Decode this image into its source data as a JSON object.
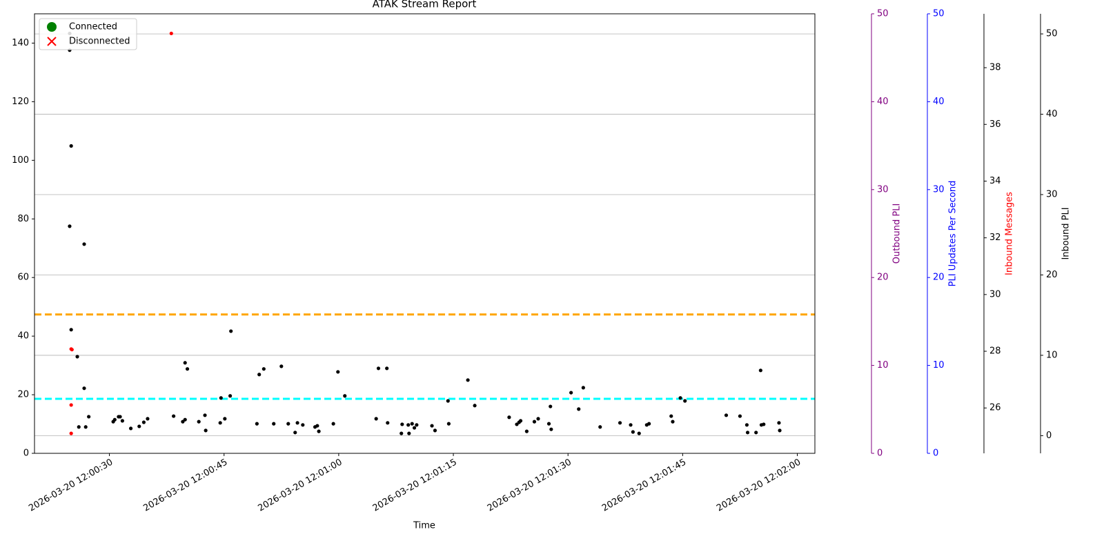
{
  "chart_data": {
    "type": "scatter",
    "title": "ATAK Stream Report",
    "x_label": "Time",
    "xlim": [
      "2026-03-20 12:00:20.2",
      "2026-03-20 12:02:02.3"
    ],
    "xticks": [
      "2026-03-20 12:00:30",
      "2026-03-20 12:00:45",
      "2026-03-20 12:01:00",
      "2026-03-20 12:01:15",
      "2026-03-20 12:01:30",
      "2026-03-20 12:01:45",
      "2026-03-20 12:02:00"
    ],
    "ylim": [
      0,
      150
    ],
    "yticks": [
      0,
      20,
      40,
      60,
      80,
      100,
      120,
      140
    ],
    "legend": {
      "position": "upper left",
      "items": [
        {
          "label": "Connected",
          "color": "green",
          "marker": "circle"
        },
        {
          "label": "Disconnected",
          "color": "red",
          "marker": "x"
        }
      ]
    },
    "hlines": [
      {
        "y": 47.4,
        "color": "orange"
      },
      {
        "y": 18.6,
        "color": "cyan"
      }
    ],
    "series": [
      {
        "color": "black",
        "x": [
          "2026-03-20 12:00:24.8",
          "2026-03-20 12:00:24.8",
          "2026-03-20 12:00:25.0",
          "2026-03-20 12:00:24.8",
          "2026-03-20 12:00:26.7",
          "2026-03-20 12:00:25.0",
          "2026-03-20 12:00:25.8",
          "2026-03-20 12:00:26.7",
          "2026-03-20 12:00:26.0",
          "2026-03-20 12:00:26.9",
          "2026-03-20 12:00:27.3",
          "2026-03-20 12:00:30.5",
          "2026-03-20 12:00:30.7",
          "2026-03-20 12:00:31.2",
          "2026-03-20 12:00:31.4",
          "2026-03-20 12:00:31.7",
          "2026-03-20 12:00:32.8",
          "2026-03-20 12:00:33.9",
          "2026-03-20 12:00:34.5",
          "2026-03-20 12:00:35.0",
          "2026-03-20 12:00:38.4",
          "2026-03-20 12:00:39.6",
          "2026-03-20 12:00:39.9",
          "2026-03-20 12:00:39.9",
          "2026-03-20 12:00:40.2",
          "2026-03-20 12:00:41.7",
          "2026-03-20 12:00:42.5",
          "2026-03-20 12:00:42.6",
          "2026-03-20 12:00:44.5",
          "2026-03-20 12:00:44.6",
          "2026-03-20 12:00:45.1",
          "2026-03-20 12:00:45.8",
          "2026-03-20 12:00:45.9",
          "2026-03-20 12:00:49.3",
          "2026-03-20 12:00:49.6",
          "2026-03-20 12:00:50.2",
          "2026-03-20 12:00:51.5",
          "2026-03-20 12:00:52.5",
          "2026-03-20 12:00:53.4",
          "2026-03-20 12:00:54.3",
          "2026-03-20 12:00:54.6",
          "2026-03-20 12:00:55.3",
          "2026-03-20 12:00:56.9",
          "2026-03-20 12:00:57.2",
          "2026-03-20 12:00:57.4",
          "2026-03-20 12:00:59.3",
          "2026-03-20 12:00:59.9",
          "2026-03-20 12:01:00.8",
          "2026-03-20 12:01:04.9",
          "2026-03-20 12:01:05.2",
          "2026-03-20 12:01:06.3",
          "2026-03-20 12:01:06.4",
          "2026-03-20 12:01:08.2",
          "2026-03-20 12:01:08.3",
          "2026-03-20 12:01:09.1",
          "2026-03-20 12:01:09.2",
          "2026-03-20 12:01:09.6",
          "2026-03-20 12:01:09.9",
          "2026-03-20 12:01:10.2",
          "2026-03-20 12:01:12.2",
          "2026-03-20 12:01:12.6",
          "2026-03-20 12:01:14.3",
          "2026-03-20 12:01:14.4",
          "2026-03-20 12:01:16.9",
          "2026-03-20 12:01:17.8",
          "2026-03-20 12:01:22.3",
          "2026-03-20 12:01:23.3",
          "2026-03-20 12:01:23.6",
          "2026-03-20 12:01:23.8",
          "2026-03-20 12:01:24.6",
          "2026-03-20 12:01:25.6",
          "2026-03-20 12:01:26.1",
          "2026-03-20 12:01:27.5",
          "2026-03-20 12:01:27.7",
          "2026-03-20 12:01:27.8",
          "2026-03-20 12:01:30.4",
          "2026-03-20 12:01:31.4",
          "2026-03-20 12:01:32.0",
          "2026-03-20 12:01:34.2",
          "2026-03-20 12:01:36.8",
          "2026-03-20 12:01:38.2",
          "2026-03-20 12:01:38.5",
          "2026-03-20 12:01:39.3",
          "2026-03-20 12:01:40.3",
          "2026-03-20 12:01:40.6",
          "2026-03-20 12:01:43.5",
          "2026-03-20 12:01:43.7",
          "2026-03-20 12:01:44.7",
          "2026-03-20 12:01:45.3",
          "2026-03-20 12:01:50.7",
          "2026-03-20 12:01:52.5",
          "2026-03-20 12:01:53.4",
          "2026-03-20 12:01:53.5",
          "2026-03-20 12:01:54.6",
          "2026-03-20 12:01:55.2",
          "2026-03-20 12:01:55.3",
          "2026-03-20 12:01:55.6",
          "2026-03-20 12:01:57.6",
          "2026-03-20 12:01:57.7"
        ],
        "values": [
          143.3,
          137.6,
          104.9,
          77.5,
          71.4,
          42.2,
          33.0,
          22.2,
          9.0,
          9.0,
          12.5,
          10.8,
          11.5,
          12.5,
          12.5,
          11.1,
          8.5,
          9.2,
          10.6,
          11.8,
          12.7,
          10.8,
          30.9,
          11.5,
          28.8,
          10.8,
          13.0,
          7.8,
          10.4,
          18.9,
          11.8,
          19.6,
          41.7,
          10.1,
          26.9,
          28.8,
          10.1,
          29.7,
          10.1,
          7.1,
          10.4,
          9.7,
          9.0,
          9.4,
          7.5,
          10.1,
          27.8,
          19.6,
          11.8,
          29.0,
          29.0,
          10.4,
          6.8,
          9.9,
          9.7,
          6.8,
          10.1,
          8.7,
          9.7,
          9.4,
          7.8,
          17.9,
          10.1,
          25.0,
          16.3,
          12.3,
          9.9,
          10.6,
          11.1,
          7.5,
          10.8,
          11.8,
          10.1,
          16.0,
          8.2,
          20.7,
          15.1,
          22.4,
          9.0,
          10.4,
          9.7,
          7.3,
          6.8,
          9.7,
          10.1,
          12.7,
          10.8,
          18.9,
          17.9,
          13.0,
          12.7,
          9.7,
          7.1,
          7.1,
          28.3,
          9.7,
          9.9,
          10.4,
          7.8
        ]
      },
      {
        "color": "red",
        "x": [
          "2026-03-20 12:00:25.0",
          "2026-03-20 12:00:25.1",
          "2026-03-20 12:00:25.0",
          "2026-03-20 12:00:25.0",
          "2026-03-20 12:00:38.1"
        ],
        "values": [
          35.6,
          35.4,
          16.5,
          6.8,
          143.3
        ]
      }
    ],
    "right_axes": [
      {
        "label": "Outbound PLI",
        "color": "purple",
        "label_color": "purple",
        "ylim": [
          0,
          50
        ],
        "yticks": [
          0,
          10,
          20,
          30,
          40,
          50
        ],
        "grid": false
      },
      {
        "label": "PLI Updates Per Second",
        "color": "blue",
        "label_color": "blue",
        "ylim": [
          0,
          50
        ],
        "yticks": [
          0,
          10,
          20,
          30,
          40,
          50
        ],
        "grid": false
      },
      {
        "label": "Inbound Messages",
        "color": "black",
        "label_color": "red",
        "ylim": [
          24.4,
          39.9
        ],
        "yticks": [
          26,
          28,
          30,
          32,
          34,
          36,
          38
        ],
        "grid": false
      },
      {
        "label": "Inbound PLI",
        "color": "black",
        "label_color": "black",
        "ylim": [
          -2.2,
          52.5
        ],
        "yticks": [
          0,
          10,
          20,
          30,
          40,
          50
        ],
        "grid": true
      }
    ]
  }
}
